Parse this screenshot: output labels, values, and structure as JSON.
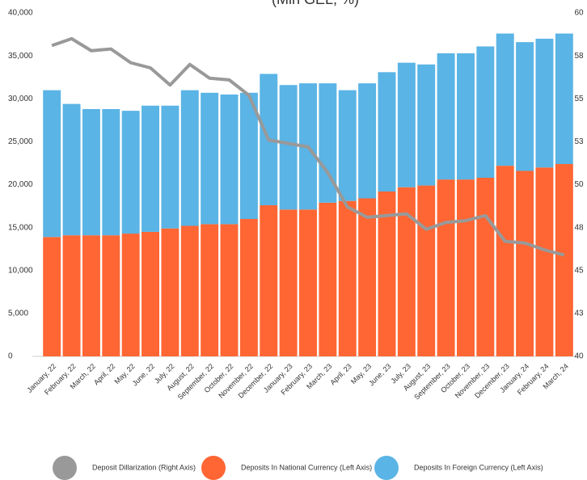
{
  "chart_data": {
    "type": "bar",
    "title": "(Mln GEL, %)",
    "categories": [
      "January, 22",
      "February, 22",
      "March, 22",
      "April, 22",
      "May, 22",
      "June, 22",
      "July, 22",
      "August, 22",
      "September, 22",
      "October, 22",
      "November, 22",
      "December, 22",
      "January, 23",
      "February, 23",
      "March, 23",
      "April, 23",
      "May, 23",
      "June, 23",
      "July, 23",
      "August, 23",
      "September, 23",
      "October, 23",
      "November, 23",
      "December, 23",
      "January, 24",
      "February, 24",
      "March, 24"
    ],
    "series": [
      {
        "name": "Deposit Dillarization (Right Axis)",
        "color": "#999999",
        "type": "line",
        "axis": "y2",
        "values": [
          58.1,
          58.5,
          57.8,
          57.9,
          57.1,
          56.8,
          55.8,
          57.0,
          56.2,
          56.1,
          55.2,
          52.6,
          52.4,
          52.2,
          50.7,
          48.7,
          48.1,
          48.2,
          48.3,
          47.4,
          47.8,
          47.9,
          48.2,
          46.7,
          46.6,
          46.2,
          45.9
        ]
      },
      {
        "name": "Deposits In National Currency (Left Axis)",
        "color": "#ff6633",
        "type": "bar",
        "values": [
          13900,
          14100,
          14100,
          14100,
          14300,
          14500,
          14900,
          15200,
          15400,
          15400,
          16000,
          17600,
          17100,
          17100,
          17900,
          18100,
          18400,
          19200,
          19700,
          19900,
          20600,
          20600,
          20800,
          22200,
          21600,
          22000,
          22400
        ]
      },
      {
        "name": "Deposits In Foreign Currency (Left Axis)",
        "color": "#5ab4e5",
        "type": "bar",
        "values": [
          17100,
          15300,
          14700,
          14700,
          14300,
          14700,
          14300,
          15800,
          15300,
          15100,
          14700,
          15300,
          14500,
          14700,
          13900,
          12900,
          13400,
          13900,
          14500,
          14100,
          14700,
          14700,
          15300,
          15400,
          15000,
          15000,
          15200
        ]
      }
    ],
    "ylim": [
      0,
      40000
    ],
    "yticks": [
      0,
      {
        "value": 5000,
        "label": "5,000"
      },
      {
        "value": 10000,
        "label": "10,000"
      },
      {
        "value": 15000,
        "label": "15,000"
      },
      {
        "value": 20000,
        "label": "20,000"
      },
      {
        "value": 25000,
        "label": "25,000"
      },
      {
        "value": 30000,
        "label": "30,000"
      },
      {
        "value": 35000,
        "label": "35,000"
      },
      {
        "value": 40000,
        "label": "40,000"
      }
    ],
    "y2lim": [
      40,
      60
    ],
    "y2ticks": [
      40,
      {
        "value": 42.5,
        "label": "43"
      },
      45,
      {
        "value": 47.5,
        "label": "48"
      },
      50,
      {
        "value": 52.5,
        "label": "53"
      },
      55,
      {
        "value": 57.5,
        "label": "58"
      },
      60
    ],
    "stacked": true,
    "grid": false,
    "legend": "bottom"
  }
}
